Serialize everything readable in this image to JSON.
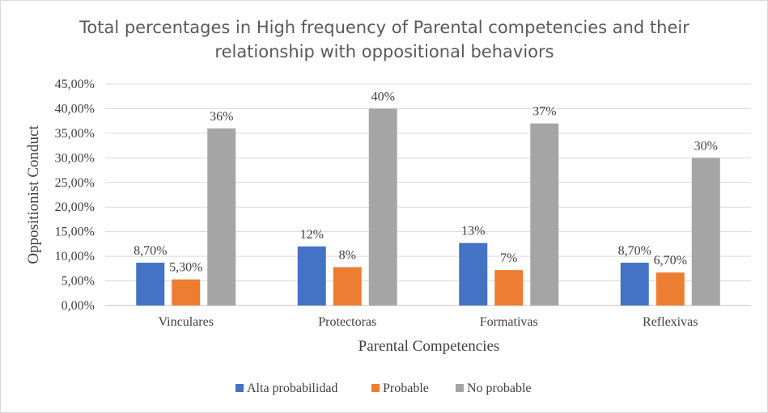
{
  "chart_data": {
    "type": "bar",
    "title_lines": [
      "Total percentages in High frequency of Parental competencies and their",
      "relationship with oppositional behaviors"
    ],
    "xlabel": "Parental Competencies",
    "ylabel": "Oppositionist Conduct",
    "categories": [
      "Vinculares",
      "Protectoras",
      "Formativas",
      "Reflexivas"
    ],
    "ylim": [
      0,
      45
    ],
    "y_ticks": [
      0,
      5,
      10,
      15,
      20,
      25,
      30,
      35,
      40,
      45
    ],
    "y_tick_labels": [
      "0,00%",
      "5,00%",
      "10,00%",
      "15,00%",
      "20,00%",
      "25,00%",
      "30,00%",
      "35,00%",
      "40,00%",
      "45,00%"
    ],
    "grid": true,
    "legend_position": "bottom",
    "series": [
      {
        "name": "Alta probabilidad",
        "color": "#4472C4",
        "values": [
          8.7,
          12,
          12.7,
          8.7
        ],
        "labels": [
          "8,70%",
          "12%",
          "13%",
          "8,70%"
        ]
      },
      {
        "name": "Probable",
        "color": "#ED7D31",
        "values": [
          5.3,
          7.8,
          7.2,
          6.7
        ],
        "labels": [
          "5,30%",
          "8%",
          "7%",
          "6,70%"
        ]
      },
      {
        "name": "No probable",
        "color": "#A5A5A5",
        "values": [
          36,
          40,
          37,
          30
        ],
        "labels": [
          "36%",
          "40%",
          "37%",
          "30%"
        ]
      }
    ]
  }
}
